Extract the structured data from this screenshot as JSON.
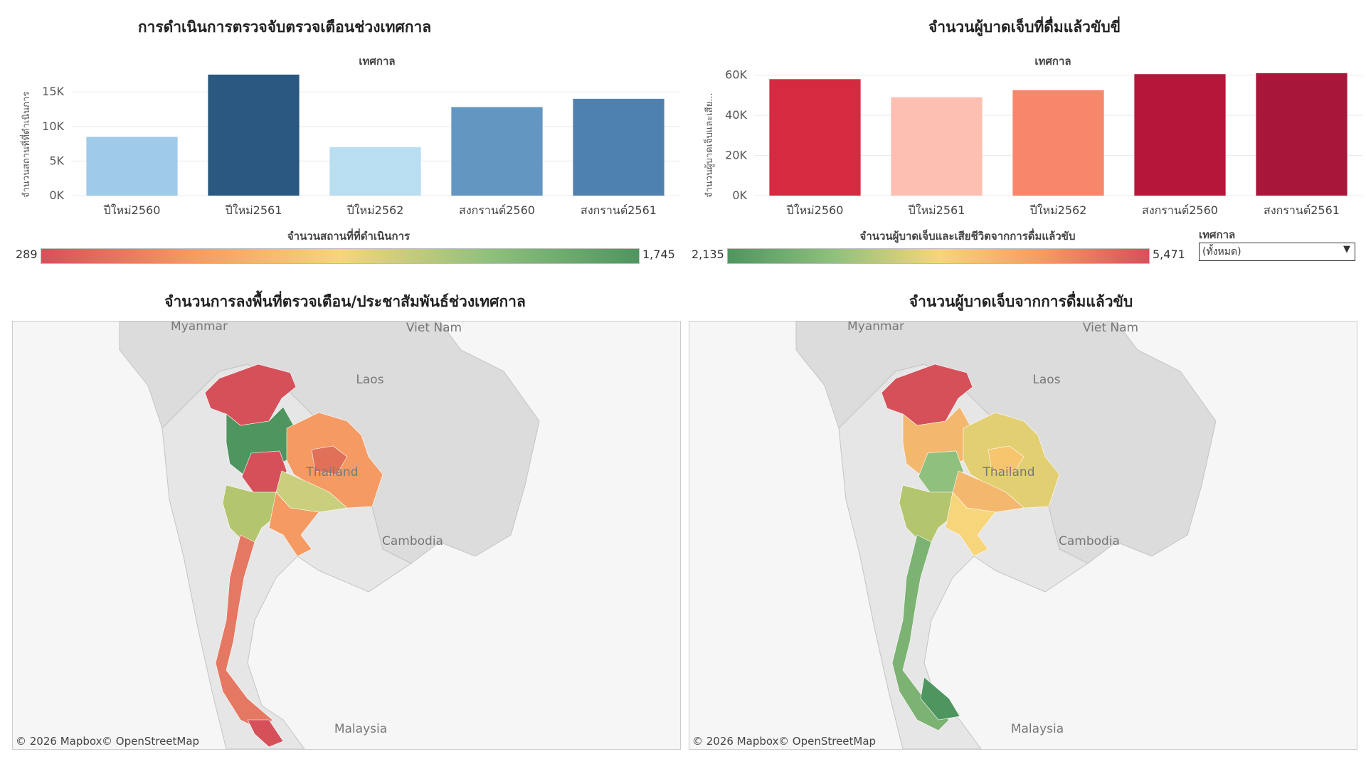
{
  "left_bar": {
    "title": "การดำเนินการตรวจจับตรวจเตือนช่วงเทศกาล",
    "column_header": "เทศกาล",
    "ylabel": "จำนวนสถานที่ที่ดำเนินการ"
  },
  "right_bar": {
    "title": "จำนวนผู้บาดเจ็บที่ดื่มแล้วขับขี่",
    "column_header": "เทศกาล",
    "ylabel": "จำนวนผู้บาดเจ็บและเสีย..."
  },
  "left_legend": {
    "label": "จำนวนสถานที่ที่ดำเนินการ",
    "min": "289",
    "max": "1,745"
  },
  "right_legend": {
    "label": "จำนวนผู้บาดเจ็บและเสียชีวิตจากการดื่มแล้วขับ",
    "min": "2,135",
    "max": "5,471"
  },
  "filter": {
    "label": "เทศกาล",
    "value": "(ทั้งหมด)"
  },
  "left_map": {
    "title": "จำนวนการลงพื้นที่ตรวจเตือน/ประชาสัมพันธ์ช่วงเทศกาล",
    "labels": {
      "myanmar": "Myanmar",
      "vietnam": "Viet Nam",
      "laos": "Laos",
      "thailand": "Thailand",
      "cambodia": "Cambodia",
      "malaysia": "Malaysia"
    },
    "credit_mapbox": "© 2026 Mapbox",
    "credit_osm": "© OpenStreetMap"
  },
  "right_map": {
    "title": "จำนวนผู้บาดเจ็บจากการดื่มแล้วขับ",
    "labels": {
      "myanmar": "Myanmar",
      "vietnam": "Viet Nam",
      "laos": "Laos",
      "thailand": "Thailand",
      "cambodia": "Cambodia",
      "malaysia": "Malaysia"
    },
    "credit_mapbox": "© 2026 Mapbox",
    "credit_osm": "© OpenStreetMap"
  },
  "colors": {
    "diverging_red_green": [
      "#d6505a",
      "#f59a62",
      "#f6d57b",
      "#8fc07d",
      "#4e9560"
    ],
    "diverging_green_red": [
      "#4e9560",
      "#8fc07d",
      "#f6d57b",
      "#f59a62",
      "#d6505a"
    ]
  },
  "chart_data": [
    {
      "type": "bar",
      "categories": [
        "ปีใหม่2560",
        "ปีใหม่2561",
        "ปีใหม่2562",
        "สงกรานต์2560",
        "สงกรานต์2561"
      ],
      "values": [
        8500,
        17500,
        7000,
        12800,
        14000
      ],
      "colors": [
        "#a0cbe8",
        "#2a5880",
        "#b9ddf1",
        "#6396c0",
        "#4f81b0"
      ],
      "ylim": [
        0,
        18000
      ],
      "yticks": [
        0,
        5000,
        10000,
        15000
      ],
      "yticklabels": [
        "0K",
        "5K",
        "10K",
        "15K"
      ]
    },
    {
      "type": "bar",
      "categories": [
        "ปีใหม่2560",
        "ปีใหม่2561",
        "ปีใหม่2562",
        "สงกรานต์2560",
        "สงกรานต์2561"
      ],
      "values": [
        58000,
        49000,
        52500,
        60500,
        61000
      ],
      "colors": [
        "#d62a40",
        "#fdbfb1",
        "#f7876b",
        "#b5163a",
        "#a8163a"
      ],
      "ylim": [
        0,
        62000
      ],
      "yticks": [
        0,
        20000,
        40000,
        60000
      ],
      "yticklabels": [
        "0K",
        "20K",
        "40K",
        "60K"
      ]
    }
  ]
}
